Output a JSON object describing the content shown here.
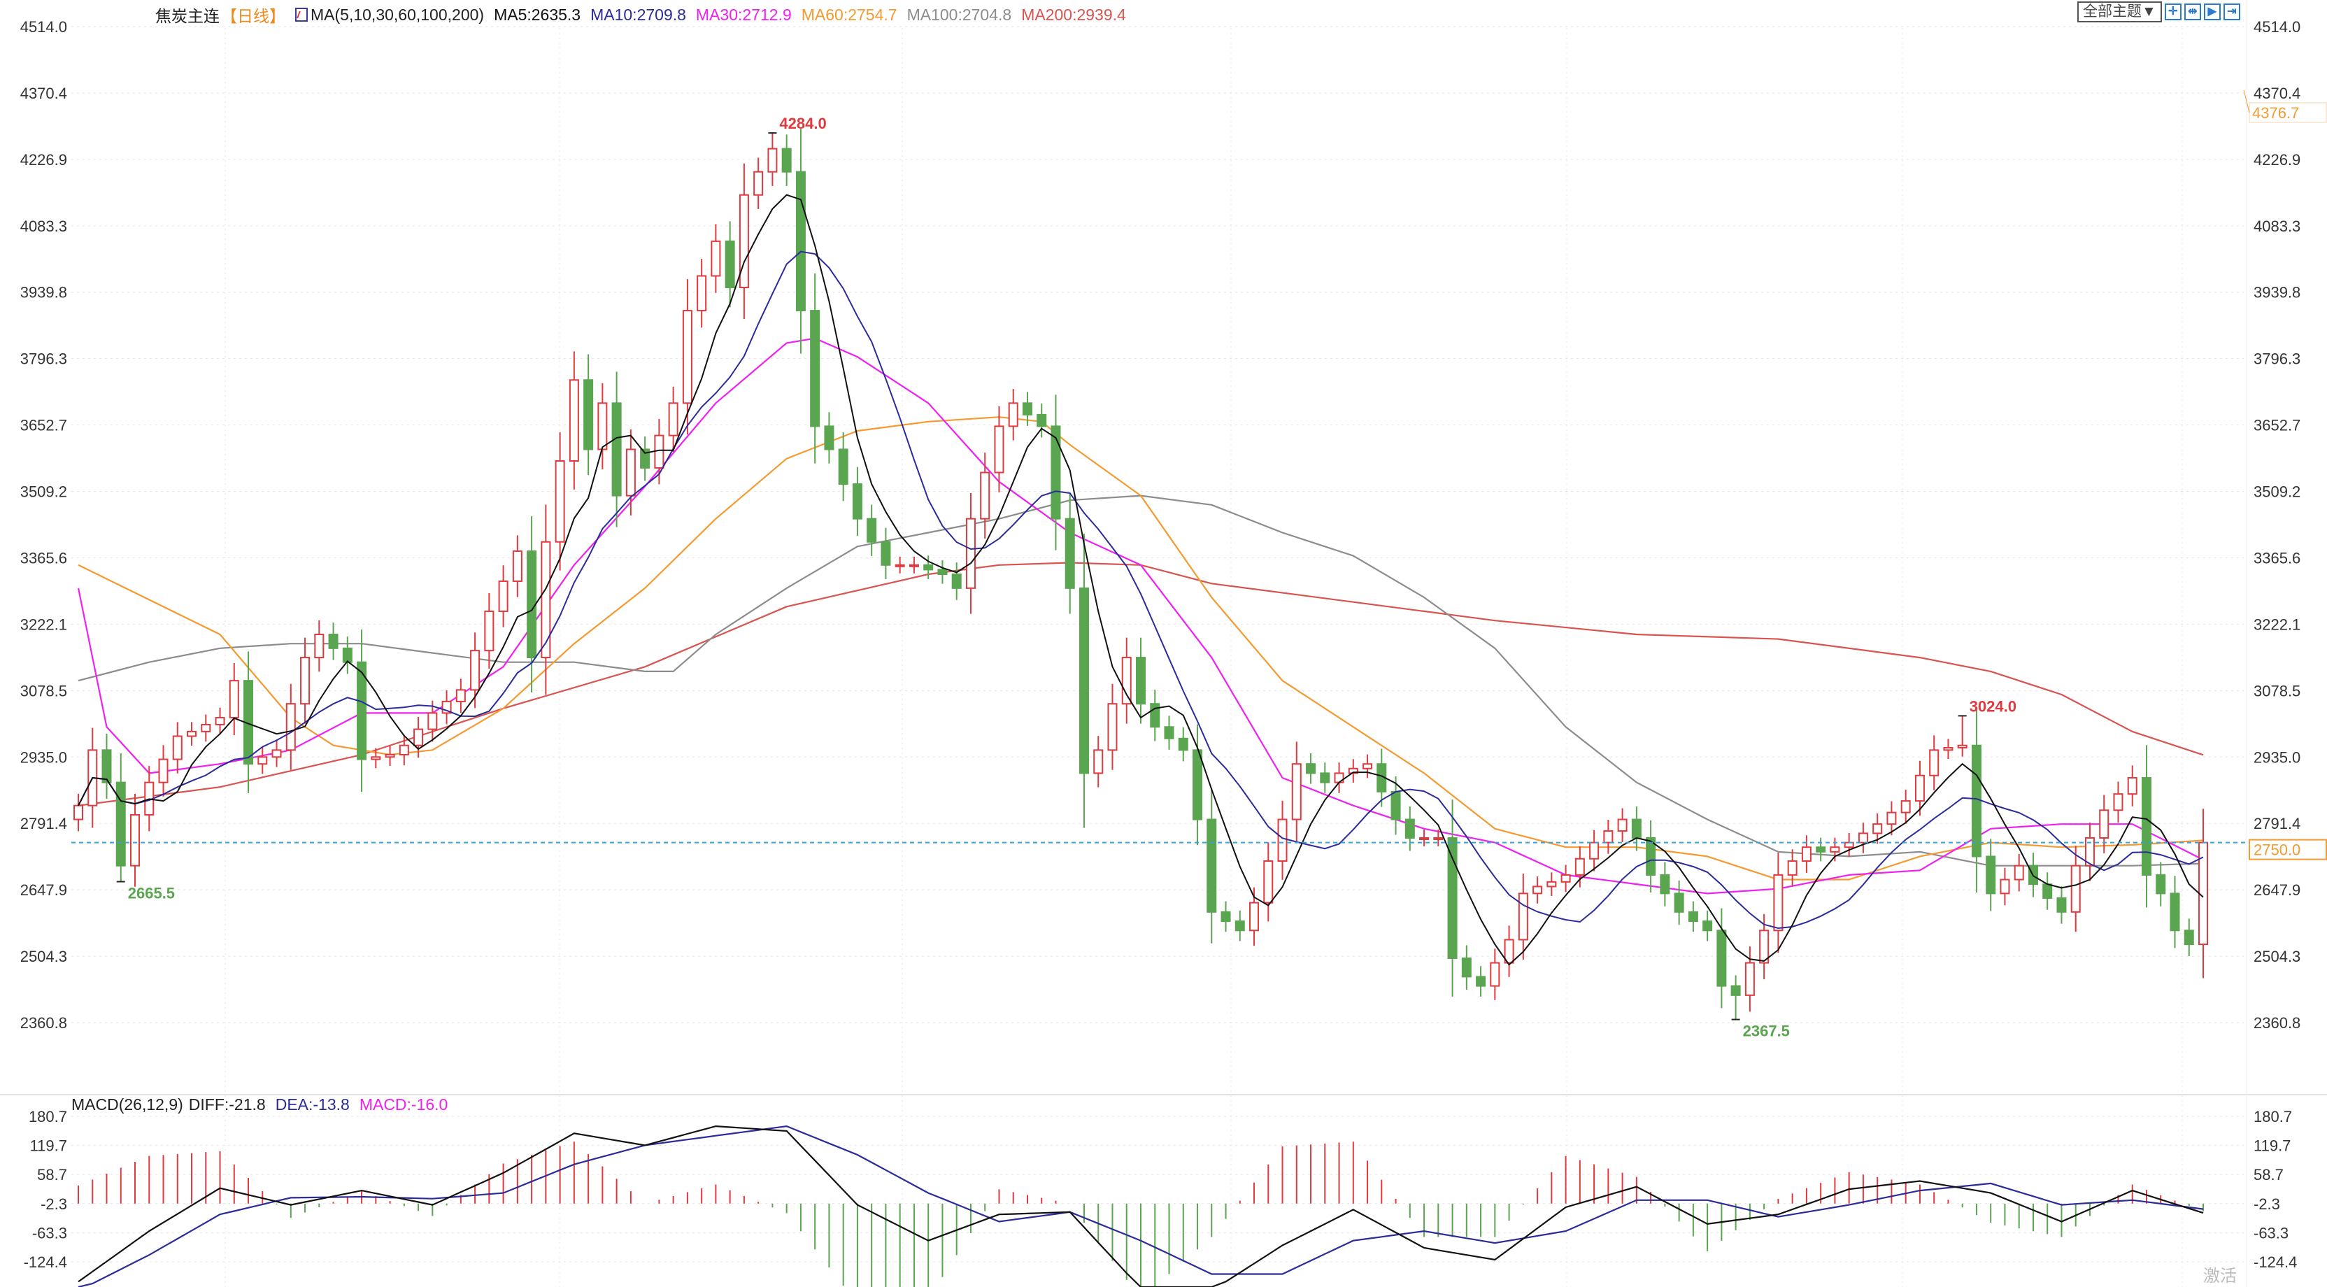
{
  "legend": {
    "instrument": "焦炭主连",
    "period": "【日线】",
    "ma_label": "MA(5,10,30,60,100,200)",
    "ma5": "MA5:2635.3",
    "ma10": "MA10:2709.8",
    "ma30": "MA30:2712.9",
    "ma60": "MA60:2754.7",
    "ma100": "MA100:2704.8",
    "ma200": "MA200:2939.4"
  },
  "macd_legend": {
    "label": "MACD(26,12,9)",
    "diff": "DIFF:-21.8",
    "dea": "DEA:-13.8",
    "macd": "MACD:-16.0"
  },
  "toolbar": {
    "theme_button": "全部主题▼",
    "icons": [
      "crosshair-icon",
      "zoom-range-icon",
      "play-icon",
      "go-latest-icon"
    ]
  },
  "watermark": "激活",
  "colors": {
    "up": "#e0393e",
    "down": "#5aa550",
    "ma5": "#111111",
    "ma10": "#2b2b9a",
    "ma30": "#f020f0",
    "ma60": "#f59a30",
    "ma100": "#8c8c8c",
    "ma200": "#d9534f",
    "diff": "#111111",
    "dea": "#2b2b9a",
    "price_line": "#3aa0d8"
  },
  "chart_data": [
    {
      "type": "candlestick",
      "price_ticks": [
        "4514.0",
        "4370.4",
        "4226.9",
        "4083.3",
        "3939.8",
        "3796.3",
        "3652.7",
        "3509.2",
        "3365.6",
        "3222.1",
        "3078.5",
        "2935.0",
        "2791.4",
        "2647.9",
        "2504.3",
        "2360.8"
      ],
      "ylim": [
        2360.8,
        4514.0
      ],
      "current_price": "2750.0",
      "marker_price": "4376.7",
      "closes": [
        2830,
        2950,
        2880,
        2700,
        2810,
        2880,
        2930,
        2980,
        2990,
        3005,
        3020,
        3100,
        2920,
        2935,
        2950,
        3050,
        3150,
        3200,
        3170,
        3140,
        2930,
        2935,
        2940,
        2960,
        2995,
        3030,
        3055,
        3080,
        3165,
        3250,
        3315,
        3380,
        3150,
        3400,
        3575,
        3750,
        3600,
        3700,
        3500,
        3600,
        3560,
        3630,
        3700,
        3900,
        3975,
        4050,
        3950,
        4150,
        4200,
        4250,
        4200,
        3900,
        3650,
        3600,
        3525,
        3450,
        3400,
        3350,
        3350,
        3350,
        3340,
        3330,
        3300,
        3450,
        3550,
        3650,
        3700,
        3675,
        3650,
        3450,
        3300,
        2900,
        2950,
        3050,
        3150,
        3050,
        3000,
        2975,
        2950,
        2800,
        2600,
        2580,
        2560,
        2620,
        2710,
        2800,
        2920,
        2900,
        2880,
        2900,
        2910,
        2920,
        2860,
        2800,
        2760,
        2760,
        2760,
        2500,
        2460,
        2440,
        2490,
        2540,
        2640,
        2655,
        2665,
        2680,
        2715,
        2750,
        2775,
        2800,
        2760,
        2680,
        2640,
        2600,
        2580,
        2560,
        2440,
        2420,
        2490,
        2560,
        2680,
        2710,
        2740,
        2730,
        2740,
        2750,
        2770,
        2790,
        2815,
        2840,
        2895,
        2950,
        2955,
        2960,
        2720,
        2640,
        2670,
        2700,
        2660,
        2630,
        2600,
        2700,
        2760,
        2820,
        2855,
        2890,
        2680,
        2640,
        2560,
        2530,
        2750
      ],
      "moving_averages": {
        "ma30": [
          [
            0,
            3300
          ],
          [
            2,
            3000
          ],
          [
            5,
            2900
          ],
          [
            10,
            2920
          ],
          [
            15,
            2950
          ],
          [
            20,
            3030
          ],
          [
            25,
            3030
          ],
          [
            30,
            3130
          ],
          [
            35,
            3350
          ],
          [
            40,
            3520
          ],
          [
            45,
            3700
          ],
          [
            50,
            3830
          ],
          [
            52,
            3840
          ],
          [
            55,
            3800
          ],
          [
            60,
            3700
          ],
          [
            65,
            3530
          ],
          [
            70,
            3420
          ],
          [
            75,
            3350
          ],
          [
            80,
            3150
          ],
          [
            85,
            2890
          ],
          [
            90,
            2830
          ],
          [
            95,
            2780
          ],
          [
            100,
            2750
          ],
          [
            105,
            2680
          ],
          [
            110,
            2660
          ],
          [
            115,
            2640
          ],
          [
            120,
            2650
          ],
          [
            125,
            2680
          ],
          [
            130,
            2690
          ],
          [
            135,
            2780
          ],
          [
            140,
            2790
          ],
          [
            145,
            2790
          ],
          [
            150,
            2712.9
          ]
        ],
        "ma60": [
          [
            0,
            3350
          ],
          [
            10,
            3200
          ],
          [
            15,
            3020
          ],
          [
            18,
            2960
          ],
          [
            22,
            2940
          ],
          [
            25,
            2950
          ],
          [
            30,
            3040
          ],
          [
            35,
            3180
          ],
          [
            40,
            3300
          ],
          [
            45,
            3450
          ],
          [
            50,
            3580
          ],
          [
            55,
            3640
          ],
          [
            60,
            3660
          ],
          [
            65,
            3670
          ],
          [
            68,
            3660
          ],
          [
            70,
            3610
          ],
          [
            75,
            3500
          ],
          [
            80,
            3280
          ],
          [
            85,
            3100
          ],
          [
            90,
            3000
          ],
          [
            95,
            2900
          ],
          [
            100,
            2780
          ],
          [
            105,
            2740
          ],
          [
            110,
            2740
          ],
          [
            115,
            2720
          ],
          [
            120,
            2670
          ],
          [
            125,
            2670
          ],
          [
            130,
            2720
          ],
          [
            135,
            2750
          ],
          [
            140,
            2740
          ],
          [
            145,
            2745
          ],
          [
            150,
            2754.7
          ]
        ],
        "ma100": [
          [
            0,
            3100
          ],
          [
            5,
            3140
          ],
          [
            10,
            3170
          ],
          [
            15,
            3180
          ],
          [
            20,
            3180
          ],
          [
            25,
            3160
          ],
          [
            30,
            3140
          ],
          [
            35,
            3140
          ],
          [
            40,
            3120
          ],
          [
            42,
            3120
          ],
          [
            45,
            3200
          ],
          [
            50,
            3300
          ],
          [
            55,
            3390
          ],
          [
            60,
            3420
          ],
          [
            65,
            3450
          ],
          [
            70,
            3490
          ],
          [
            75,
            3500
          ],
          [
            80,
            3480
          ],
          [
            85,
            3420
          ],
          [
            90,
            3370
          ],
          [
            95,
            3280
          ],
          [
            100,
            3170
          ],
          [
            105,
            3000
          ],
          [
            110,
            2880
          ],
          [
            115,
            2800
          ],
          [
            120,
            2730
          ],
          [
            125,
            2720
          ],
          [
            130,
            2730
          ],
          [
            135,
            2700
          ],
          [
            140,
            2700
          ],
          [
            145,
            2700
          ],
          [
            150,
            2704.8
          ]
        ],
        "ma200": [
          [
            0,
            2830
          ],
          [
            10,
            2870
          ],
          [
            20,
            2940
          ],
          [
            30,
            3040
          ],
          [
            40,
            3130
          ],
          [
            50,
            3260
          ],
          [
            60,
            3330
          ],
          [
            65,
            3350
          ],
          [
            70,
            3355
          ],
          [
            75,
            3350
          ],
          [
            80,
            3310
          ],
          [
            90,
            3270
          ],
          [
            100,
            3230
          ],
          [
            110,
            3200
          ],
          [
            120,
            3190
          ],
          [
            130,
            3150
          ],
          [
            135,
            3120
          ],
          [
            140,
            3070
          ],
          [
            145,
            2990
          ],
          [
            150,
            2939.4
          ]
        ]
      },
      "annotations": [
        {
          "label": "4284.0",
          "index": 49,
          "price": 4284.0,
          "kind": "high"
        },
        {
          "label": "2665.5",
          "index": 3,
          "price": 2665.5,
          "kind": "low"
        },
        {
          "label": "2367.5",
          "index": 117,
          "price": 2367.5,
          "kind": "low"
        },
        {
          "label": "3024.0",
          "index": 133,
          "price": 3024.0,
          "kind": "high"
        }
      ]
    },
    {
      "type": "macd",
      "ticks": [
        "180.7",
        "119.7",
        "58.7",
        "-2.3",
        "-63.3",
        "-124.4"
      ],
      "ylim": [
        -124.4,
        180.7
      ],
      "sample_step": 5,
      "diff": [
        -166,
        -60,
        30,
        -5,
        25,
        -5,
        62,
        145,
        120,
        160,
        150,
        -5,
        -80,
        -25,
        -20,
        -180,
        -185,
        -90,
        -15,
        -95,
        -120,
        -10,
        33,
        -45,
        -25,
        28,
        45,
        20,
        -40,
        25,
        -21.8
      ],
      "dea": [
        -185,
        -110,
        -25,
        10,
        12,
        8,
        20,
        80,
        120,
        140,
        160,
        100,
        20,
        -40,
        -20,
        -80,
        -150,
        -150,
        -80,
        -60,
        -85,
        -60,
        5,
        5,
        -30,
        -5,
        25,
        40,
        -5,
        5,
        -13.8
      ]
    }
  ]
}
